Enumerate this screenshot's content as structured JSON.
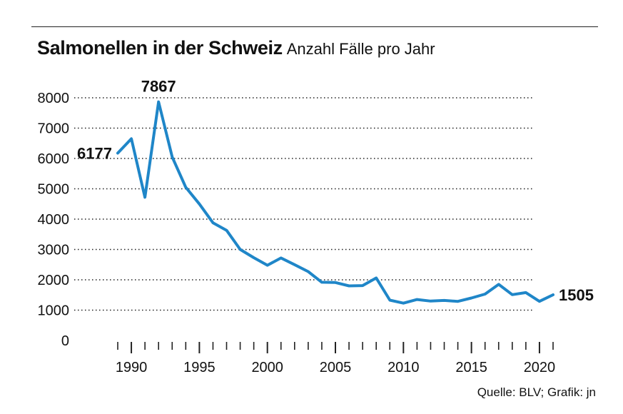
{
  "header": {
    "title": "Salmonellen in der Schweiz",
    "subtitle": "Anzahl Fälle pro Jahr"
  },
  "footer": {
    "source": "Quelle: BLV; Grafik: jn"
  },
  "colors": {
    "line": "#1f86c8",
    "grid": "#222222",
    "text": "#111111"
  },
  "chart_data": {
    "type": "line",
    "title": "Salmonellen in der Schweiz",
    "subtitle": "Anzahl Fälle pro Jahr",
    "xlabel": "",
    "ylabel": "",
    "xlim": [
      1989,
      2021
    ],
    "ylim": [
      0,
      8000
    ],
    "y_ticks": [
      0,
      1000,
      2000,
      3000,
      4000,
      5000,
      6000,
      7000,
      8000
    ],
    "x_tick_labels": [
      1990,
      1995,
      2000,
      2005,
      2010,
      2015,
      2020
    ],
    "grid": "horizontal dotted",
    "legend": "none",
    "series": [
      {
        "x": [
          1989,
          1990,
          1991,
          1992,
          1993,
          1994,
          1995,
          1996,
          1997,
          1998,
          1999,
          2000,
          2001,
          2002,
          2003,
          2004,
          2005,
          2006,
          2007,
          2008,
          2009,
          2010,
          2011,
          2012,
          2013,
          2014,
          2015,
          2016,
          2017,
          2018,
          2019,
          2020,
          2021
        ],
        "values": [
          6177,
          6650,
          4720,
          7867,
          6050,
          5050,
          4500,
          3880,
          3630,
          3000,
          2730,
          2480,
          2720,
          2500,
          2270,
          1920,
          1910,
          1800,
          1810,
          2060,
          1330,
          1230,
          1350,
          1300,
          1320,
          1290,
          1400,
          1530,
          1850,
          1510,
          1580,
          1290,
          1505
        ]
      }
    ],
    "annotations": [
      {
        "label": "6177",
        "x": 1989,
        "value": 6177
      },
      {
        "label": "7867",
        "x": 1992,
        "value": 7867
      },
      {
        "label": "1505",
        "x": 2021,
        "value": 1505
      }
    ]
  }
}
